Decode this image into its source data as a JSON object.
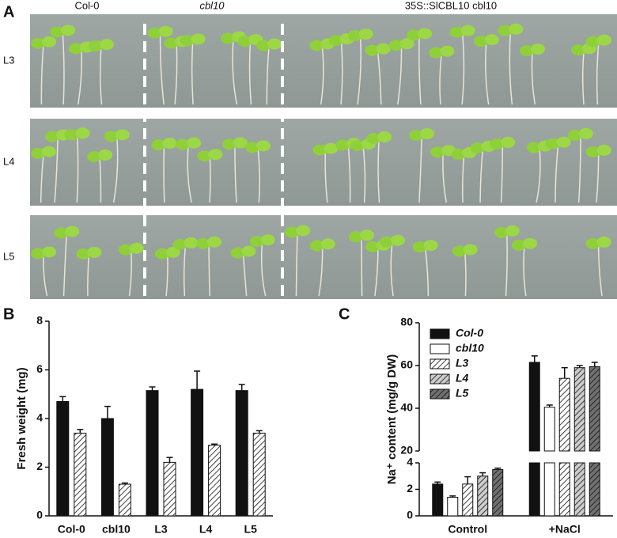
{
  "figure": {
    "panel_labels": [
      "A",
      "B",
      "C"
    ],
    "photo": {
      "column_labels": [
        "Col-0",
        "cbl10",
        "35S::SlCBL10 cbl10"
      ],
      "row_labels": [
        "L3",
        "L4",
        "L5"
      ]
    }
  },
  "chart_data": [
    {
      "type": "bar",
      "ylabel": "Fresh weight (mg)",
      "categories": [
        "Col-0",
        "cbl10",
        "L3",
        "L4",
        "L5"
      ],
      "series": [
        {
          "color": "#111111",
          "hatch": false,
          "values": [
            4.7,
            4.0,
            5.15,
            5.2,
            5.15
          ],
          "errors": [
            0.2,
            0.5,
            0.15,
            0.75,
            0.25
          ]
        },
        {
          "color": "#ffffff",
          "hatch": true,
          "values": [
            3.4,
            1.3,
            2.2,
            2.9,
            3.4
          ],
          "errors": [
            0.15,
            0.05,
            0.2,
            0.05,
            0.1
          ]
        }
      ],
      "ylim": [
        0,
        8
      ],
      "yticks": [
        0,
        2,
        4,
        6,
        8
      ]
    },
    {
      "type": "bar",
      "ylabel": "Na⁺ content (mg/g DW)",
      "categories": [
        "Control",
        "+NaCl"
      ],
      "series": [
        {
          "name": "Col-0",
          "color": "#111111",
          "hatch": false,
          "values": [
            2.4,
            61.5
          ],
          "errors": [
            0.15,
            3
          ]
        },
        {
          "name": "cbl10",
          "color": "#ffffff",
          "hatch": false,
          "values": [
            1.4,
            40.5
          ],
          "errors": [
            0.1,
            1
          ]
        },
        {
          "name": "L3",
          "color": "#ffffff",
          "hatch": true,
          "values": [
            2.4,
            54
          ],
          "errors": [
            0.55,
            5
          ]
        },
        {
          "name": "L4",
          "color": "#cccccc",
          "hatch": true,
          "values": [
            3.0,
            59
          ],
          "errors": [
            0.25,
            1
          ]
        },
        {
          "name": "L5",
          "color": "#707070",
          "hatch": true,
          "values": [
            3.5,
            59.5
          ],
          "errors": [
            0.1,
            2
          ]
        }
      ],
      "ylim": [
        0,
        80
      ],
      "axis_break": [
        4,
        20
      ],
      "yticks": [
        0,
        2,
        4,
        20,
        40,
        60,
        80
      ],
      "legend": "upper left"
    }
  ]
}
